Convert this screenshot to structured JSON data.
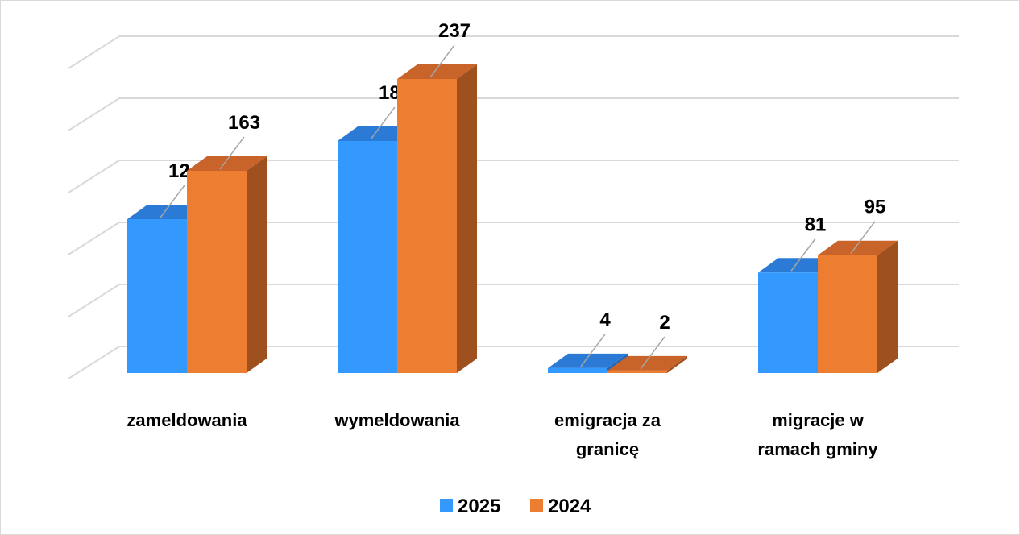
{
  "chart_data": {
    "type": "bar3d",
    "categories": [
      "zameldowania",
      "wymeldowania",
      "emigracja za granicę",
      "migracje w ramach gminy"
    ],
    "series": [
      {
        "name": "2025",
        "color": "#3399ff",
        "top": "#2b7bd6",
        "side": "#1f66b8",
        "values": [
          124,
          187,
          4,
          81
        ]
      },
      {
        "name": "2024",
        "color": "#ed7d31",
        "top": "#c8632a",
        "side": "#9e501f",
        "values": [
          163,
          237,
          2,
          95
        ]
      }
    ],
    "ylim": [
      0,
      250
    ],
    "yticks": [
      0,
      50,
      100,
      150,
      200,
      250
    ],
    "grid": true,
    "legend": "bottom"
  }
}
